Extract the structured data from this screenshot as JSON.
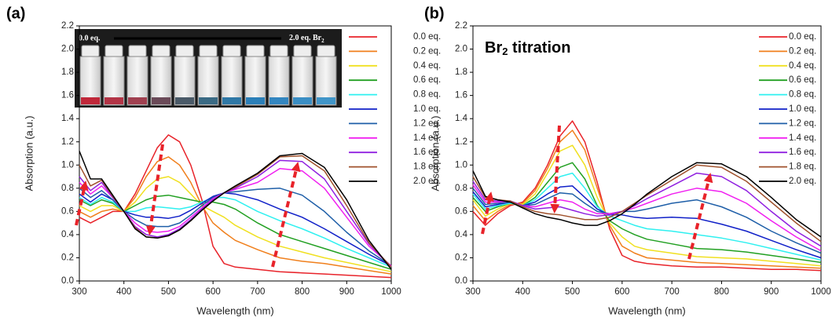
{
  "chart_data": [
    {
      "type": "line",
      "panel_label": "(a)",
      "xlabel": "Wavelength (nm)",
      "ylabel": "Absorption (a.u.)",
      "inset_label_left": "0.0 eq.",
      "inset_label_right": [
        "2.0 eq. Br",
        "2"
      ],
      "xlim": [
        300,
        1000
      ],
      "ylim": [
        0,
        2.2
      ],
      "xticks": [
        300,
        400,
        500,
        600,
        700,
        800,
        900,
        1000
      ],
      "yticks": [
        {
          "value": 0,
          "label": "0.0"
        },
        0.2,
        0.4,
        0.6,
        0.8,
        {
          "value": 1,
          "label": "1.0"
        },
        1.2,
        1.4,
        1.6,
        1.8,
        {
          "value": 2,
          "label": "2.0"
        },
        2.2
      ],
      "legend": "upper right",
      "x": [
        300,
        325,
        350,
        375,
        400,
        425,
        450,
        475,
        500,
        525,
        550,
        575,
        600,
        625,
        650,
        700,
        750,
        800,
        850,
        900,
        950,
        1000
      ],
      "series": [
        {
          "name": "0.0 eq.",
          "color": "#e8232a",
          "values": [
            0.55,
            0.5,
            0.55,
            0.6,
            0.6,
            0.75,
            0.95,
            1.15,
            1.26,
            1.2,
            1.0,
            0.7,
            0.3,
            0.15,
            0.12,
            0.1,
            0.08,
            0.07,
            0.06,
            0.05,
            0.04,
            0.03
          ]
        },
        {
          "name": "0.2 eq.",
          "color": "#f07f1c",
          "values": [
            0.6,
            0.55,
            0.6,
            0.62,
            0.6,
            0.72,
            0.9,
            1.03,
            1.07,
            1.0,
            0.85,
            0.65,
            0.5,
            0.42,
            0.35,
            0.27,
            0.2,
            0.17,
            0.15,
            0.12,
            0.09,
            0.06
          ]
        },
        {
          "name": "0.4 eq.",
          "color": "#f0e020",
          "values": [
            0.65,
            0.6,
            0.65,
            0.65,
            0.6,
            0.68,
            0.8,
            0.88,
            0.9,
            0.85,
            0.75,
            0.65,
            0.6,
            0.55,
            0.48,
            0.38,
            0.3,
            0.25,
            0.2,
            0.16,
            0.12,
            0.08
          ]
        },
        {
          "name": "0.6 eq.",
          "color": "#22a022",
          "values": [
            0.7,
            0.65,
            0.7,
            0.67,
            0.6,
            0.65,
            0.7,
            0.73,
            0.74,
            0.72,
            0.7,
            0.68,
            0.68,
            0.66,
            0.62,
            0.5,
            0.4,
            0.34,
            0.28,
            0.22,
            0.16,
            0.1
          ]
        },
        {
          "name": "0.8 eq.",
          "color": "#2ff0f0",
          "values": [
            0.72,
            0.66,
            0.72,
            0.68,
            0.6,
            0.6,
            0.63,
            0.64,
            0.63,
            0.62,
            0.64,
            0.68,
            0.72,
            0.72,
            0.7,
            0.6,
            0.52,
            0.45,
            0.37,
            0.28,
            0.2,
            0.12
          ]
        },
        {
          "name": "1.0 eq.",
          "color": "#1020c8",
          "values": [
            0.75,
            0.68,
            0.75,
            0.7,
            0.6,
            0.57,
            0.55,
            0.55,
            0.54,
            0.56,
            0.61,
            0.67,
            0.73,
            0.76,
            0.75,
            0.7,
            0.62,
            0.55,
            0.45,
            0.34,
            0.23,
            0.13
          ]
        },
        {
          "name": "1.2 eq.",
          "color": "#1f5fa8",
          "values": [
            0.8,
            0.72,
            0.78,
            0.7,
            0.6,
            0.53,
            0.48,
            0.47,
            0.47,
            0.5,
            0.57,
            0.65,
            0.72,
            0.76,
            0.77,
            0.79,
            0.8,
            0.74,
            0.6,
            0.42,
            0.26,
            0.13
          ]
        },
        {
          "name": "1.4 eq.",
          "color": "#f020f0",
          "values": [
            0.85,
            0.75,
            0.82,
            0.72,
            0.6,
            0.5,
            0.43,
            0.42,
            0.43,
            0.47,
            0.55,
            0.63,
            0.71,
            0.76,
            0.79,
            0.85,
            0.97,
            0.95,
            0.8,
            0.55,
            0.3,
            0.13
          ]
        },
        {
          "name": "1.6 eq.",
          "color": "#9020e0",
          "values": [
            0.9,
            0.78,
            0.85,
            0.72,
            0.6,
            0.47,
            0.4,
            0.38,
            0.4,
            0.45,
            0.53,
            0.62,
            0.7,
            0.76,
            0.8,
            0.9,
            1.04,
            1.03,
            0.88,
            0.6,
            0.32,
            0.12
          ]
        },
        {
          "name": "1.8 eq.",
          "color": "#a0522d",
          "values": [
            1.0,
            0.82,
            0.87,
            0.73,
            0.6,
            0.46,
            0.38,
            0.37,
            0.39,
            0.44,
            0.52,
            0.61,
            0.69,
            0.76,
            0.81,
            0.92,
            1.07,
            1.08,
            0.95,
            0.65,
            0.33,
            0.12
          ]
        },
        {
          "name": "2.0 eq.",
          "color": "#000000",
          "values": [
            1.12,
            0.88,
            0.88,
            0.74,
            0.6,
            0.45,
            0.38,
            0.37,
            0.39,
            0.44,
            0.52,
            0.61,
            0.69,
            0.76,
            0.82,
            0.93,
            1.08,
            1.1,
            0.98,
            0.7,
            0.35,
            0.1
          ]
        }
      ]
    },
    {
      "type": "line",
      "panel_label": "(b)",
      "xlabel": "Wavelength (nm)",
      "ylabel": "Absorption (a.u.)",
      "annotation": [
        "Br",
        "2",
        " titration"
      ],
      "xlim": [
        300,
        1000
      ],
      "ylim": [
        0,
        2.2
      ],
      "xticks": [
        300,
        400,
        500,
        600,
        700,
        800,
        900,
        1000
      ],
      "yticks": [
        {
          "value": 0,
          "label": "0.0"
        },
        0.2,
        0.4,
        0.6,
        0.8,
        {
          "value": 1,
          "label": "1.0"
        },
        1.2,
        1.4,
        1.6,
        1.8,
        {
          "value": 2,
          "label": "2.0"
        },
        2.2
      ],
      "legend": "upper right",
      "x": [
        300,
        325,
        350,
        375,
        400,
        425,
        450,
        475,
        500,
        525,
        550,
        575,
        600,
        625,
        650,
        700,
        750,
        800,
        850,
        900,
        950,
        1000
      ],
      "series": [
        {
          "name": "0.0 eq.",
          "color": "#e8232a",
          "values": [
            0.6,
            0.48,
            0.58,
            0.65,
            0.68,
            0.8,
            1.0,
            1.25,
            1.38,
            1.2,
            0.85,
            0.45,
            0.22,
            0.17,
            0.15,
            0.13,
            0.12,
            0.12,
            0.11,
            0.1,
            0.1,
            0.09
          ]
        },
        {
          "name": "0.2 eq.",
          "color": "#f07f1c",
          "values": [
            0.65,
            0.52,
            0.6,
            0.66,
            0.67,
            0.78,
            0.97,
            1.2,
            1.3,
            1.13,
            0.8,
            0.48,
            0.3,
            0.24,
            0.2,
            0.18,
            0.16,
            0.15,
            0.14,
            0.13,
            0.12,
            0.11
          ]
        },
        {
          "name": "0.4 eq.",
          "color": "#f0e020",
          "values": [
            0.7,
            0.56,
            0.62,
            0.67,
            0.66,
            0.75,
            0.93,
            1.12,
            1.17,
            1.0,
            0.72,
            0.5,
            0.38,
            0.3,
            0.27,
            0.24,
            0.21,
            0.2,
            0.19,
            0.17,
            0.15,
            0.13
          ]
        },
        {
          "name": "0.6 eq.",
          "color": "#22a022",
          "values": [
            0.72,
            0.6,
            0.64,
            0.67,
            0.65,
            0.72,
            0.85,
            0.98,
            1.02,
            0.88,
            0.65,
            0.52,
            0.45,
            0.4,
            0.36,
            0.32,
            0.28,
            0.27,
            0.25,
            0.22,
            0.19,
            0.16
          ]
        },
        {
          "name": "0.8 eq.",
          "color": "#2ff0f0",
          "values": [
            0.75,
            0.62,
            0.65,
            0.67,
            0.65,
            0.7,
            0.8,
            0.9,
            0.93,
            0.8,
            0.64,
            0.56,
            0.52,
            0.48,
            0.45,
            0.43,
            0.4,
            0.37,
            0.33,
            0.28,
            0.23,
            0.18
          ]
        },
        {
          "name": "1.0 eq.",
          "color": "#1020c8",
          "values": [
            0.77,
            0.64,
            0.66,
            0.68,
            0.65,
            0.68,
            0.75,
            0.81,
            0.82,
            0.72,
            0.62,
            0.57,
            0.57,
            0.55,
            0.54,
            0.55,
            0.54,
            0.49,
            0.43,
            0.35,
            0.27,
            0.2
          ]
        },
        {
          "name": "1.2 eq.",
          "color": "#1f5fa8",
          "values": [
            0.8,
            0.66,
            0.67,
            0.68,
            0.65,
            0.66,
            0.71,
            0.76,
            0.75,
            0.67,
            0.6,
            0.58,
            0.6,
            0.6,
            0.62,
            0.67,
            0.7,
            0.64,
            0.55,
            0.43,
            0.33,
            0.24
          ]
        },
        {
          "name": "1.4 eq.",
          "color": "#f020f0",
          "values": [
            0.83,
            0.68,
            0.68,
            0.69,
            0.65,
            0.64,
            0.67,
            0.7,
            0.68,
            0.62,
            0.58,
            0.58,
            0.6,
            0.63,
            0.67,
            0.75,
            0.8,
            0.77,
            0.67,
            0.52,
            0.38,
            0.26
          ]
        },
        {
          "name": "1.6 eq.",
          "color": "#9020e0",
          "values": [
            0.86,
            0.7,
            0.69,
            0.69,
            0.65,
            0.62,
            0.63,
            0.64,
            0.61,
            0.58,
            0.56,
            0.57,
            0.6,
            0.65,
            0.71,
            0.82,
            0.93,
            0.9,
            0.78,
            0.6,
            0.43,
            0.3
          ]
        },
        {
          "name": "1.8 eq.",
          "color": "#a0522d",
          "values": [
            0.9,
            0.72,
            0.7,
            0.69,
            0.64,
            0.6,
            0.58,
            0.57,
            0.55,
            0.53,
            0.53,
            0.55,
            0.6,
            0.67,
            0.74,
            0.87,
            1.0,
            0.98,
            0.86,
            0.68,
            0.5,
            0.34
          ]
        },
        {
          "name": "2.0 eq.",
          "color": "#000000",
          "values": [
            0.95,
            0.73,
            0.7,
            0.68,
            0.63,
            0.58,
            0.55,
            0.53,
            0.5,
            0.48,
            0.48,
            0.52,
            0.58,
            0.66,
            0.75,
            0.9,
            1.02,
            1.01,
            0.9,
            0.72,
            0.53,
            0.38
          ]
        }
      ]
    }
  ]
}
